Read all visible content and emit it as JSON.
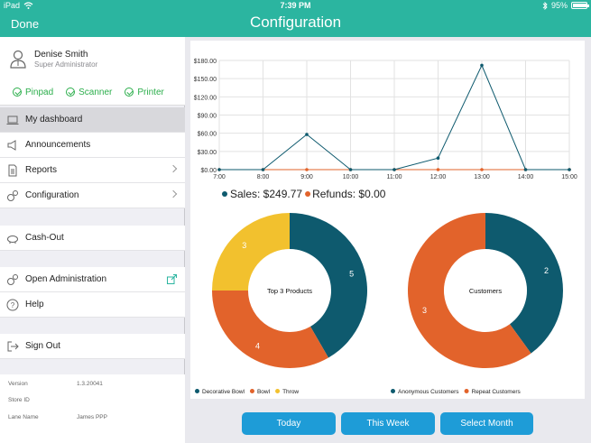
{
  "status_bar": {
    "device": "iPad",
    "time": "7:39 PM",
    "battery": "95%",
    "battery_level": 0.95
  },
  "header": {
    "title": "Configuration",
    "done_label": "Done"
  },
  "user": {
    "name": "Denise Smith",
    "role": "Super Administrator"
  },
  "devices": [
    {
      "label": "Pinpad"
    },
    {
      "label": "Scanner"
    },
    {
      "label": "Printer"
    }
  ],
  "menu": {
    "dashboard": "My dashboard",
    "announcements": "Announcements",
    "reports": "Reports",
    "configuration": "Configuration",
    "cashout": "Cash-Out",
    "open_admin": "Open Administration",
    "help": "Help",
    "signout": "Sign Out"
  },
  "info": {
    "version_label": "Version",
    "version_value": "1.3.20041",
    "store_label": "Store ID",
    "store_value": "",
    "lane_label": "Lane Name",
    "lane_value": "James PPP"
  },
  "summary": {
    "sales": "Sales: $249.77",
    "refunds": "Refunds: $0.00"
  },
  "colors": {
    "teal_header": "#2bb5a0",
    "sales": "#0e5a6e",
    "refunds": "#e2632b",
    "yellow": "#f2c12e",
    "button": "#1e9cd7",
    "check": "#2bae4b"
  },
  "chart_data": [
    {
      "type": "line",
      "x": [
        "7:00",
        "8:00",
        "9:00",
        "10:00",
        "11:00",
        "12:00",
        "13:00",
        "14:00",
        "15:00"
      ],
      "y_ticks": [
        "$0.00",
        "$30.00",
        "$60.00",
        "$90.00",
        "$120.00",
        "$150.00",
        "$180.00"
      ],
      "ylim": [
        0,
        180
      ],
      "series": [
        {
          "name": "Sales",
          "color": "#0e5a6e",
          "values": [
            0,
            0,
            58,
            0,
            0,
            19,
            172,
            0,
            0
          ]
        },
        {
          "name": "Refunds",
          "color": "#e2632b",
          "values": [
            0,
            0,
            0,
            0,
            0,
            0,
            0,
            0,
            0
          ]
        }
      ]
    },
    {
      "type": "pie",
      "title": "Top 3 Products",
      "slices": [
        {
          "name": "Decorative Bowl",
          "value": 5,
          "color": "#0e5a6e"
        },
        {
          "name": "Bowl",
          "value": 4,
          "color": "#e2632b"
        },
        {
          "name": "Throw",
          "value": 3,
          "color": "#f2c12e"
        }
      ]
    },
    {
      "type": "pie",
      "title": "Customers",
      "slices": [
        {
          "name": "Anonymous Customers",
          "value": 2,
          "color": "#0e5a6e"
        },
        {
          "name": "Repeat Customers",
          "value": 3,
          "color": "#e2632b"
        }
      ]
    }
  ],
  "buttons": {
    "today": "Today",
    "week": "This Week",
    "month": "Select Month"
  }
}
